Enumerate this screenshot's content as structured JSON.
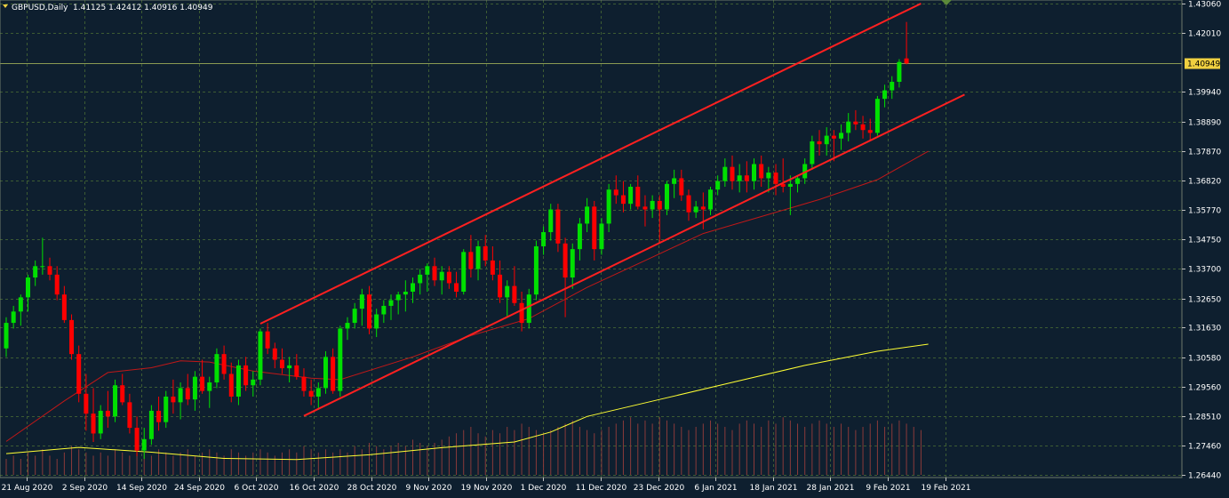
{
  "header": {
    "symbol": "GBPUSD,Daily",
    "ohlc": "1.41125 1.42412 1.40916 1.40949"
  },
  "colors": {
    "background": "#0e1f2f",
    "grid": "#3d5c33",
    "bull": "#00e000",
    "bear": "#ff0000",
    "trendline": "#ff2020",
    "ma_slow": "#ffff33",
    "ma_fast": "#c01818",
    "axis_text": "#ffffff",
    "price_tag_bg": "#f0d040",
    "price_tag_text": "#000000",
    "volume": "#8a3a3a"
  },
  "icons": {
    "symbol_marker": "triangle-down-icon",
    "top_marker": "triangle-down-icon"
  },
  "chart_data": {
    "type": "candlestick",
    "symbol": "GBPUSD",
    "timeframe": "Daily",
    "grid": true,
    "y_axis": {
      "ticks": [
        "1.43060",
        "1.42010",
        "1.40949",
        "1.39940",
        "1.38890",
        "1.37870",
        "1.36820",
        "1.35770",
        "1.34750",
        "1.33700",
        "1.32650",
        "1.31630",
        "1.30580",
        "1.29560",
        "1.28510",
        "1.27460",
        "1.26440"
      ],
      "range": [
        1.2644,
        1.4306
      ],
      "current_price": "1.40949"
    },
    "x_axis": {
      "ticks": [
        "21 Aug 2020",
        "2 Sep 2020",
        "14 Sep 2020",
        "24 Sep 2020",
        "6 Oct 2020",
        "16 Oct 2020",
        "28 Oct 2020",
        "9 Nov 2020",
        "19 Nov 2020",
        "1 Dec 2020",
        "11 Dec 2020",
        "23 Dec 2020",
        "6 Jan 2021",
        "18 Jan 2021",
        "28 Jan 2021",
        "9 Feb 2021",
        "19 Feb 2021"
      ]
    },
    "candles": [
      {
        "o": 1.309,
        "h": 1.32,
        "l": 1.306,
        "c": 1.318
      },
      {
        "o": 1.318,
        "h": 1.324,
        "l": 1.316,
        "c": 1.322
      },
      {
        "o": 1.322,
        "h": 1.328,
        "l": 1.317,
        "c": 1.327
      },
      {
        "o": 1.327,
        "h": 1.335,
        "l": 1.322,
        "c": 1.334
      },
      {
        "o": 1.334,
        "h": 1.34,
        "l": 1.331,
        "c": 1.338
      },
      {
        "o": 1.338,
        "h": 1.348,
        "l": 1.335,
        "c": 1.338
      },
      {
        "o": 1.338,
        "h": 1.341,
        "l": 1.333,
        "c": 1.335
      },
      {
        "o": 1.335,
        "h": 1.338,
        "l": 1.326,
        "c": 1.328
      },
      {
        "o": 1.328,
        "h": 1.331,
        "l": 1.318,
        "c": 1.319
      },
      {
        "o": 1.319,
        "h": 1.321,
        "l": 1.305,
        "c": 1.307
      },
      {
        "o": 1.307,
        "h": 1.31,
        "l": 1.29,
        "c": 1.293
      },
      {
        "o": 1.293,
        "h": 1.3,
        "l": 1.28,
        "c": 1.286
      },
      {
        "o": 1.286,
        "h": 1.295,
        "l": 1.276,
        "c": 1.279
      },
      {
        "o": 1.279,
        "h": 1.289,
        "l": 1.277,
        "c": 1.287
      },
      {
        "o": 1.287,
        "h": 1.294,
        "l": 1.281,
        "c": 1.285
      },
      {
        "o": 1.285,
        "h": 1.298,
        "l": 1.283,
        "c": 1.296
      },
      {
        "o": 1.296,
        "h": 1.3,
        "l": 1.289,
        "c": 1.29
      },
      {
        "o": 1.29,
        "h": 1.293,
        "l": 1.279,
        "c": 1.281
      },
      {
        "o": 1.281,
        "h": 1.285,
        "l": 1.271,
        "c": 1.273
      },
      {
        "o": 1.273,
        "h": 1.281,
        "l": 1.27,
        "c": 1.277
      },
      {
        "o": 1.277,
        "h": 1.289,
        "l": 1.275,
        "c": 1.287
      },
      {
        "o": 1.287,
        "h": 1.292,
        "l": 1.28,
        "c": 1.283
      },
      {
        "o": 1.283,
        "h": 1.294,
        "l": 1.281,
        "c": 1.292
      },
      {
        "o": 1.292,
        "h": 1.298,
        "l": 1.286,
        "c": 1.29
      },
      {
        "o": 1.29,
        "h": 1.297,
        "l": 1.284,
        "c": 1.295
      },
      {
        "o": 1.295,
        "h": 1.3,
        "l": 1.289,
        "c": 1.291
      },
      {
        "o": 1.291,
        "h": 1.301,
        "l": 1.287,
        "c": 1.299
      },
      {
        "o": 1.299,
        "h": 1.305,
        "l": 1.293,
        "c": 1.294
      },
      {
        "o": 1.294,
        "h": 1.299,
        "l": 1.288,
        "c": 1.297
      },
      {
        "o": 1.297,
        "h": 1.309,
        "l": 1.295,
        "c": 1.307
      },
      {
        "o": 1.307,
        "h": 1.31,
        "l": 1.298,
        "c": 1.3
      },
      {
        "o": 1.3,
        "h": 1.304,
        "l": 1.29,
        "c": 1.292
      },
      {
        "o": 1.292,
        "h": 1.305,
        "l": 1.289,
        "c": 1.303
      },
      {
        "o": 1.303,
        "h": 1.306,
        "l": 1.294,
        "c": 1.296
      },
      {
        "o": 1.296,
        "h": 1.301,
        "l": 1.292,
        "c": 1.298
      },
      {
        "o": 1.298,
        "h": 1.316,
        "l": 1.296,
        "c": 1.315
      },
      {
        "o": 1.315,
        "h": 1.318,
        "l": 1.307,
        "c": 1.309
      },
      {
        "o": 1.309,
        "h": 1.311,
        "l": 1.302,
        "c": 1.305
      },
      {
        "o": 1.305,
        "h": 1.309,
        "l": 1.3,
        "c": 1.302
      },
      {
        "o": 1.302,
        "h": 1.306,
        "l": 1.297,
        "c": 1.303
      },
      {
        "o": 1.303,
        "h": 1.307,
        "l": 1.298,
        "c": 1.299
      },
      {
        "o": 1.299,
        "h": 1.302,
        "l": 1.292,
        "c": 1.294
      },
      {
        "o": 1.294,
        "h": 1.298,
        "l": 1.289,
        "c": 1.292
      },
      {
        "o": 1.292,
        "h": 1.297,
        "l": 1.288,
        "c": 1.295
      },
      {
        "o": 1.295,
        "h": 1.308,
        "l": 1.293,
        "c": 1.306
      },
      {
        "o": 1.306,
        "h": 1.309,
        "l": 1.293,
        "c": 1.294
      },
      {
        "o": 1.294,
        "h": 1.317,
        "l": 1.292,
        "c": 1.316
      },
      {
        "o": 1.316,
        "h": 1.32,
        "l": 1.312,
        "c": 1.318
      },
      {
        "o": 1.318,
        "h": 1.325,
        "l": 1.316,
        "c": 1.323
      },
      {
        "o": 1.323,
        "h": 1.33,
        "l": 1.317,
        "c": 1.328
      },
      {
        "o": 1.328,
        "h": 1.331,
        "l": 1.314,
        "c": 1.316
      },
      {
        "o": 1.316,
        "h": 1.323,
        "l": 1.313,
        "c": 1.321
      },
      {
        "o": 1.321,
        "h": 1.326,
        "l": 1.318,
        "c": 1.324
      },
      {
        "o": 1.324,
        "h": 1.328,
        "l": 1.319,
        "c": 1.326
      },
      {
        "o": 1.326,
        "h": 1.329,
        "l": 1.321,
        "c": 1.328
      },
      {
        "o": 1.328,
        "h": 1.333,
        "l": 1.322,
        "c": 1.329
      },
      {
        "o": 1.329,
        "h": 1.334,
        "l": 1.325,
        "c": 1.332
      },
      {
        "o": 1.332,
        "h": 1.337,
        "l": 1.328,
        "c": 1.335
      },
      {
        "o": 1.335,
        "h": 1.339,
        "l": 1.329,
        "c": 1.338
      },
      {
        "o": 1.338,
        "h": 1.341,
        "l": 1.331,
        "c": 1.333
      },
      {
        "o": 1.333,
        "h": 1.338,
        "l": 1.328,
        "c": 1.336
      },
      {
        "o": 1.336,
        "h": 1.338,
        "l": 1.33,
        "c": 1.332
      },
      {
        "o": 1.332,
        "h": 1.336,
        "l": 1.327,
        "c": 1.329
      },
      {
        "o": 1.329,
        "h": 1.344,
        "l": 1.328,
        "c": 1.343
      },
      {
        "o": 1.343,
        "h": 1.349,
        "l": 1.334,
        "c": 1.337
      },
      {
        "o": 1.337,
        "h": 1.347,
        "l": 1.333,
        "c": 1.345
      },
      {
        "o": 1.345,
        "h": 1.349,
        "l": 1.338,
        "c": 1.34
      },
      {
        "o": 1.34,
        "h": 1.345,
        "l": 1.333,
        "c": 1.335
      },
      {
        "o": 1.335,
        "h": 1.34,
        "l": 1.325,
        "c": 1.327
      },
      {
        "o": 1.327,
        "h": 1.333,
        "l": 1.32,
        "c": 1.331
      },
      {
        "o": 1.331,
        "h": 1.338,
        "l": 1.324,
        "c": 1.325
      },
      {
        "o": 1.325,
        "h": 1.329,
        "l": 1.315,
        "c": 1.318
      },
      {
        "o": 1.318,
        "h": 1.33,
        "l": 1.316,
        "c": 1.328
      },
      {
        "o": 1.328,
        "h": 1.347,
        "l": 1.326,
        "c": 1.345
      },
      {
        "o": 1.345,
        "h": 1.352,
        "l": 1.342,
        "c": 1.35
      },
      {
        "o": 1.35,
        "h": 1.36,
        "l": 1.347,
        "c": 1.358
      },
      {
        "o": 1.358,
        "h": 1.36,
        "l": 1.343,
        "c": 1.346
      },
      {
        "o": 1.346,
        "h": 1.348,
        "l": 1.32,
        "c": 1.334
      },
      {
        "o": 1.334,
        "h": 1.346,
        "l": 1.33,
        "c": 1.344
      },
      {
        "o": 1.344,
        "h": 1.355,
        "l": 1.34,
        "c": 1.353
      },
      {
        "o": 1.353,
        "h": 1.362,
        "l": 1.35,
        "c": 1.359
      },
      {
        "o": 1.359,
        "h": 1.361,
        "l": 1.34,
        "c": 1.344
      },
      {
        "o": 1.344,
        "h": 1.355,
        "l": 1.342,
        "c": 1.353
      },
      {
        "o": 1.353,
        "h": 1.367,
        "l": 1.35,
        "c": 1.365
      },
      {
        "o": 1.365,
        "h": 1.37,
        "l": 1.36,
        "c": 1.363
      },
      {
        "o": 1.363,
        "h": 1.368,
        "l": 1.357,
        "c": 1.36
      },
      {
        "o": 1.36,
        "h": 1.367,
        "l": 1.358,
        "c": 1.366
      },
      {
        "o": 1.366,
        "h": 1.37,
        "l": 1.358,
        "c": 1.359
      },
      {
        "o": 1.359,
        "h": 1.363,
        "l": 1.352,
        "c": 1.358
      },
      {
        "o": 1.358,
        "h": 1.363,
        "l": 1.355,
        "c": 1.361
      },
      {
        "o": 1.361,
        "h": 1.363,
        "l": 1.346,
        "c": 1.358
      },
      {
        "o": 1.358,
        "h": 1.368,
        "l": 1.356,
        "c": 1.367
      },
      {
        "o": 1.367,
        "h": 1.372,
        "l": 1.362,
        "c": 1.369
      },
      {
        "o": 1.369,
        "h": 1.372,
        "l": 1.361,
        "c": 1.363
      },
      {
        "o": 1.363,
        "h": 1.365,
        "l": 1.354,
        "c": 1.357
      },
      {
        "o": 1.357,
        "h": 1.361,
        "l": 1.355,
        "c": 1.359
      },
      {
        "o": 1.359,
        "h": 1.364,
        "l": 1.351,
        "c": 1.358
      },
      {
        "o": 1.358,
        "h": 1.366,
        "l": 1.356,
        "c": 1.365
      },
      {
        "o": 1.365,
        "h": 1.37,
        "l": 1.363,
        "c": 1.368
      },
      {
        "o": 1.368,
        "h": 1.376,
        "l": 1.366,
        "c": 1.373
      },
      {
        "o": 1.373,
        "h": 1.377,
        "l": 1.365,
        "c": 1.368
      },
      {
        "o": 1.368,
        "h": 1.374,
        "l": 1.364,
        "c": 1.37
      },
      {
        "o": 1.37,
        "h": 1.375,
        "l": 1.364,
        "c": 1.368
      },
      {
        "o": 1.368,
        "h": 1.376,
        "l": 1.365,
        "c": 1.374
      },
      {
        "o": 1.374,
        "h": 1.377,
        "l": 1.366,
        "c": 1.369
      },
      {
        "o": 1.369,
        "h": 1.373,
        "l": 1.364,
        "c": 1.371
      },
      {
        "o": 1.371,
        "h": 1.374,
        "l": 1.363,
        "c": 1.367
      },
      {
        "o": 1.367,
        "h": 1.376,
        "l": 1.364,
        "c": 1.366
      },
      {
        "o": 1.366,
        "h": 1.37,
        "l": 1.356,
        "c": 1.367
      },
      {
        "o": 1.367,
        "h": 1.37,
        "l": 1.364,
        "c": 1.369
      },
      {
        "o": 1.369,
        "h": 1.376,
        "l": 1.367,
        "c": 1.374
      },
      {
        "o": 1.374,
        "h": 1.384,
        "l": 1.372,
        "c": 1.382
      },
      {
        "o": 1.382,
        "h": 1.386,
        "l": 1.377,
        "c": 1.381
      },
      {
        "o": 1.381,
        "h": 1.387,
        "l": 1.377,
        "c": 1.384
      },
      {
        "o": 1.384,
        "h": 1.386,
        "l": 1.375,
        "c": 1.383
      },
      {
        "o": 1.383,
        "h": 1.388,
        "l": 1.379,
        "c": 1.385
      },
      {
        "o": 1.385,
        "h": 1.392,
        "l": 1.382,
        "c": 1.389
      },
      {
        "o": 1.389,
        "h": 1.393,
        "l": 1.386,
        "c": 1.388
      },
      {
        "o": 1.388,
        "h": 1.391,
        "l": 1.383,
        "c": 1.386
      },
      {
        "o": 1.386,
        "h": 1.39,
        "l": 1.382,
        "c": 1.385
      },
      {
        "o": 1.385,
        "h": 1.398,
        "l": 1.384,
        "c": 1.397
      },
      {
        "o": 1.397,
        "h": 1.402,
        "l": 1.394,
        "c": 1.4
      },
      {
        "o": 1.4,
        "h": 1.405,
        "l": 1.397,
        "c": 1.403
      },
      {
        "o": 1.403,
        "h": 1.411,
        "l": 1.401,
        "c": 1.41
      },
      {
        "o": 1.41125,
        "h": 1.42412,
        "l": 1.40916,
        "c": 1.40949
      }
    ],
    "overlays": [
      {
        "kind": "trendline",
        "points": [
          [
            35,
            1.3177
          ],
          [
            126,
            1.4306
          ]
        ]
      },
      {
        "kind": "trendline",
        "points": [
          [
            41,
            1.2852
          ],
          [
            132,
            1.3985
          ]
        ]
      },
      {
        "kind": "moving_average",
        "color": "yellow",
        "values": [
          [
            0,
            1.2719
          ],
          [
            10,
            1.2741
          ],
          [
            20,
            1.2724
          ],
          [
            30,
            1.2702
          ],
          [
            40,
            1.2698
          ],
          [
            50,
            1.2715
          ],
          [
            60,
            1.274
          ],
          [
            70,
            1.276
          ],
          [
            75,
            1.2795
          ],
          [
            80,
            1.285
          ],
          [
            90,
            1.291
          ],
          [
            100,
            1.297
          ],
          [
            110,
            1.303
          ],
          [
            120,
            1.308
          ],
          [
            127,
            1.3105
          ]
        ]
      },
      {
        "kind": "moving_average",
        "color": "red",
        "values": [
          [
            0,
            1.2762
          ],
          [
            8,
            1.2905
          ],
          [
            14,
            1.3005
          ],
          [
            20,
            1.3022
          ],
          [
            24,
            1.3046
          ],
          [
            28,
            1.3042
          ],
          [
            34,
            1.301
          ],
          [
            42,
            1.2985
          ],
          [
            46,
            1.298
          ],
          [
            56,
            1.306
          ],
          [
            64,
            1.3135
          ],
          [
            72,
            1.3195
          ],
          [
            80,
            1.3305
          ],
          [
            88,
            1.34
          ],
          [
            96,
            1.3495
          ],
          [
            104,
            1.3555
          ],
          [
            112,
            1.3615
          ],
          [
            120,
            1.3685
          ],
          [
            127,
            1.3785
          ]
        ]
      }
    ],
    "volume": [
      5,
      6,
      5,
      7,
      6,
      8,
      6,
      5,
      7,
      9,
      8,
      7,
      6,
      7,
      6,
      8,
      7,
      6,
      9,
      7,
      6,
      8,
      7,
      6,
      7,
      8,
      6,
      7,
      8,
      7,
      6,
      8,
      7,
      6,
      7,
      8,
      7,
      6,
      7,
      8,
      7,
      9,
      8,
      7,
      8,
      7,
      8,
      7,
      9,
      8,
      10,
      9,
      8,
      9,
      10,
      9,
      11,
      10,
      9,
      10,
      11,
      12,
      13,
      14,
      15,
      13,
      12,
      14,
      13,
      15,
      14,
      16,
      15,
      14,
      13,
      14,
      15,
      16,
      17,
      15,
      14,
      13,
      14,
      15,
      16,
      17,
      18,
      16,
      17,
      16,
      18,
      17,
      16,
      15,
      14,
      15,
      16,
      17,
      16,
      15,
      14,
      16,
      17,
      16,
      15,
      17,
      16,
      18,
      17,
      16,
      15,
      16,
      17,
      16,
      15,
      16,
      15,
      14,
      15,
      16,
      17,
      15,
      16,
      17,
      16,
      15,
      14
    ]
  }
}
